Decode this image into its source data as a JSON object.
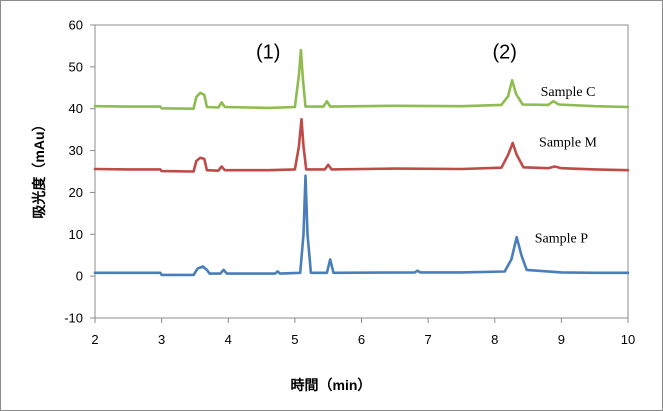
{
  "chart_data": {
    "type": "line",
    "xlabel": "時間（min）",
    "ylabel": "吸光度（mAu）",
    "xlim": [
      2,
      10
    ],
    "ylim": [
      -10,
      60
    ],
    "xticks": [
      2,
      3,
      4,
      5,
      6,
      7,
      8,
      9,
      10
    ],
    "yticks": [
      -10,
      0,
      10,
      20,
      30,
      40,
      50,
      60
    ],
    "grid": false,
    "legend": "inline-labels",
    "annotations": [
      {
        "text": "(1)",
        "x": 4.6,
        "y": 52
      },
      {
        "text": "(2)",
        "x": 8.15,
        "y": 52
      }
    ],
    "series": [
      {
        "name": "Sample C",
        "color": "#8fbc4f",
        "label_at": {
          "x": 9.1,
          "y": 43
        },
        "baseline": 40.5,
        "points": [
          [
            2.0,
            40.6
          ],
          [
            2.5,
            40.5
          ],
          [
            2.98,
            40.5
          ],
          [
            3.0,
            40.1
          ],
          [
            3.48,
            40.0
          ],
          [
            3.52,
            42.8
          ],
          [
            3.58,
            43.8
          ],
          [
            3.64,
            43.3
          ],
          [
            3.68,
            40.4
          ],
          [
            3.85,
            40.3
          ],
          [
            3.9,
            41.5
          ],
          [
            3.95,
            40.4
          ],
          [
            4.6,
            40.2
          ],
          [
            5.0,
            40.4
          ],
          [
            5.06,
            48
          ],
          [
            5.09,
            54.0
          ],
          [
            5.12,
            47
          ],
          [
            5.16,
            40.5
          ],
          [
            5.43,
            40.5
          ],
          [
            5.48,
            41.8
          ],
          [
            5.53,
            40.5
          ],
          [
            6.5,
            40.7
          ],
          [
            7.5,
            40.6
          ],
          [
            8.1,
            40.9
          ],
          [
            8.2,
            43
          ],
          [
            8.26,
            46.8
          ],
          [
            8.32,
            43.5
          ],
          [
            8.42,
            41
          ],
          [
            8.8,
            40.9
          ],
          [
            8.88,
            41.8
          ],
          [
            8.96,
            41
          ],
          [
            9.5,
            40.6
          ],
          [
            10.0,
            40.4
          ]
        ]
      },
      {
        "name": "Sample M",
        "color": "#be4b48",
        "label_at": {
          "x": 9.1,
          "y": 31
        },
        "baseline": 25.5,
        "points": [
          [
            2.0,
            25.6
          ],
          [
            2.5,
            25.5
          ],
          [
            2.98,
            25.5
          ],
          [
            3.0,
            25.1
          ],
          [
            3.48,
            25.0
          ],
          [
            3.52,
            27.5
          ],
          [
            3.58,
            28.3
          ],
          [
            3.64,
            28.0
          ],
          [
            3.68,
            25.3
          ],
          [
            3.85,
            25.2
          ],
          [
            3.9,
            26.2
          ],
          [
            3.95,
            25.3
          ],
          [
            4.6,
            25.3
          ],
          [
            5.0,
            25.5
          ],
          [
            5.06,
            31
          ],
          [
            5.1,
            37.5
          ],
          [
            5.13,
            31
          ],
          [
            5.17,
            25.5
          ],
          [
            5.45,
            25.5
          ],
          [
            5.5,
            26.6
          ],
          [
            5.55,
            25.5
          ],
          [
            6.5,
            25.7
          ],
          [
            7.5,
            25.6
          ],
          [
            8.1,
            25.9
          ],
          [
            8.2,
            29
          ],
          [
            8.27,
            31.8
          ],
          [
            8.33,
            29
          ],
          [
            8.43,
            26
          ],
          [
            8.8,
            25.8
          ],
          [
            8.9,
            26.2
          ],
          [
            9.0,
            25.8
          ],
          [
            9.5,
            25.5
          ],
          [
            10.0,
            25.3
          ]
        ]
      },
      {
        "name": "Sample P",
        "color": "#4a7ebb",
        "label_at": {
          "x": 9.0,
          "y": 8
        },
        "baseline": 0.8,
        "points": [
          [
            2.0,
            0.8
          ],
          [
            2.5,
            0.8
          ],
          [
            2.98,
            0.8
          ],
          [
            3.0,
            0.3
          ],
          [
            3.48,
            0.3
          ],
          [
            3.54,
            1.8
          ],
          [
            3.62,
            2.3
          ],
          [
            3.68,
            1.5
          ],
          [
            3.72,
            0.6
          ],
          [
            3.88,
            0.6
          ],
          [
            3.93,
            1.5
          ],
          [
            3.98,
            0.6
          ],
          [
            4.7,
            0.6
          ],
          [
            4.74,
            1.1
          ],
          [
            4.78,
            0.6
          ],
          [
            5.08,
            0.8
          ],
          [
            5.13,
            10
          ],
          [
            5.16,
            24.0
          ],
          [
            5.19,
            10
          ],
          [
            5.24,
            0.8
          ],
          [
            5.48,
            0.8
          ],
          [
            5.53,
            4.0
          ],
          [
            5.58,
            0.8
          ],
          [
            6.8,
            0.9
          ],
          [
            6.84,
            1.3
          ],
          [
            6.88,
            0.9
          ],
          [
            7.5,
            0.9
          ],
          [
            8.15,
            1.1
          ],
          [
            8.25,
            4
          ],
          [
            8.33,
            9.3
          ],
          [
            8.4,
            5
          ],
          [
            8.48,
            1.5
          ],
          [
            9.0,
            0.9
          ],
          [
            9.5,
            0.8
          ],
          [
            10.0,
            0.8
          ]
        ]
      }
    ]
  }
}
